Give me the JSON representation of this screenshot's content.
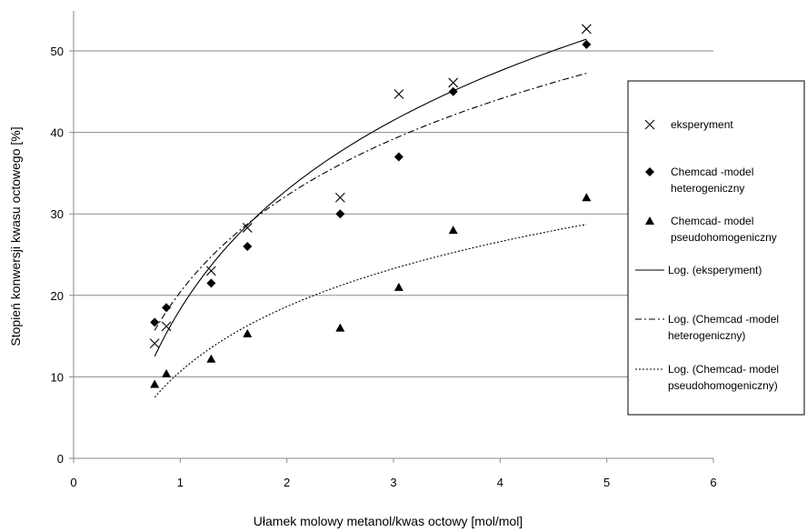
{
  "chart_data": {
    "type": "scatter",
    "xlabel": "Ułamek molowy  metanol/kwas octowy [mol/mol]",
    "ylabel": "Stopień konwersji kwasu octowego [%]",
    "xlim": [
      0,
      6
    ],
    "ylim": [
      0,
      55
    ],
    "xticks": [
      0,
      1,
      2,
      3,
      4,
      5,
      6
    ],
    "yticks": [
      0,
      10,
      20,
      30,
      40,
      50
    ],
    "grid": "horizontal",
    "legend_position": "right",
    "series": [
      {
        "name": "eksperyment",
        "marker": "x",
        "x": [
          0.76,
          0.87,
          1.29,
          1.63,
          2.5,
          3.05,
          3.56,
          4.81
        ],
        "y": [
          14.1,
          16.2,
          23,
          28.3,
          32,
          44.7,
          46.1,
          52.7
        ]
      },
      {
        "name": "Chemcad -model heterogeniczny",
        "marker": "diamond",
        "x": [
          0.76,
          0.87,
          1.29,
          1.63,
          2.5,
          3.05,
          3.56,
          4.81
        ],
        "y": [
          16.7,
          18.5,
          21.5,
          26,
          30,
          37,
          45,
          50.8
        ]
      },
      {
        "name": "Chemcad- model pseudohomogeniczny",
        "marker": "triangle",
        "x": [
          0.76,
          0.87,
          1.29,
          1.63,
          2.5,
          3.05,
          3.56,
          4.81
        ],
        "y": [
          9.1,
          10.4,
          12.2,
          15.3,
          16,
          21,
          28,
          32
        ]
      }
    ],
    "trendlines": [
      {
        "name": "Log. (eksperyment)",
        "style": "solid",
        "type": "logarithmic",
        "xrange": [
          0.76,
          4.81
        ],
        "a": 21.1,
        "b": 18.3
      },
      {
        "name": "Log. (Chemcad -model heterogeniczny)",
        "style": "dashdot",
        "type": "logarithmic",
        "xrange": [
          0.76,
          4.81
        ],
        "a": 17.1,
        "b": 20.4
      },
      {
        "name": "Log. (Chemcad- model pseudohomogeniczny)",
        "style": "dotted",
        "type": "logarithmic",
        "xrange": [
          0.76,
          4.81
        ],
        "a": 11.5,
        "b": 10.65
      }
    ],
    "legend": [
      {
        "symbol": "x",
        "lines": [
          "eksperyment"
        ]
      },
      {
        "symbol": "diamond",
        "lines": [
          "Chemcad -model",
          "heterogeniczny"
        ]
      },
      {
        "symbol": "triangle",
        "lines": [
          "Chemcad- model",
          "pseudohomogeniczny"
        ]
      },
      {
        "symbol": "solid",
        "lines": [
          "Log. (eksperyment)"
        ]
      },
      {
        "symbol": "dashdot",
        "lines": [
          "Log. (Chemcad -model",
          "heterogeniczny)"
        ]
      },
      {
        "symbol": "dotted",
        "lines": [
          "Log. (Chemcad- model",
          "pseudohomogeniczny)"
        ]
      }
    ]
  }
}
